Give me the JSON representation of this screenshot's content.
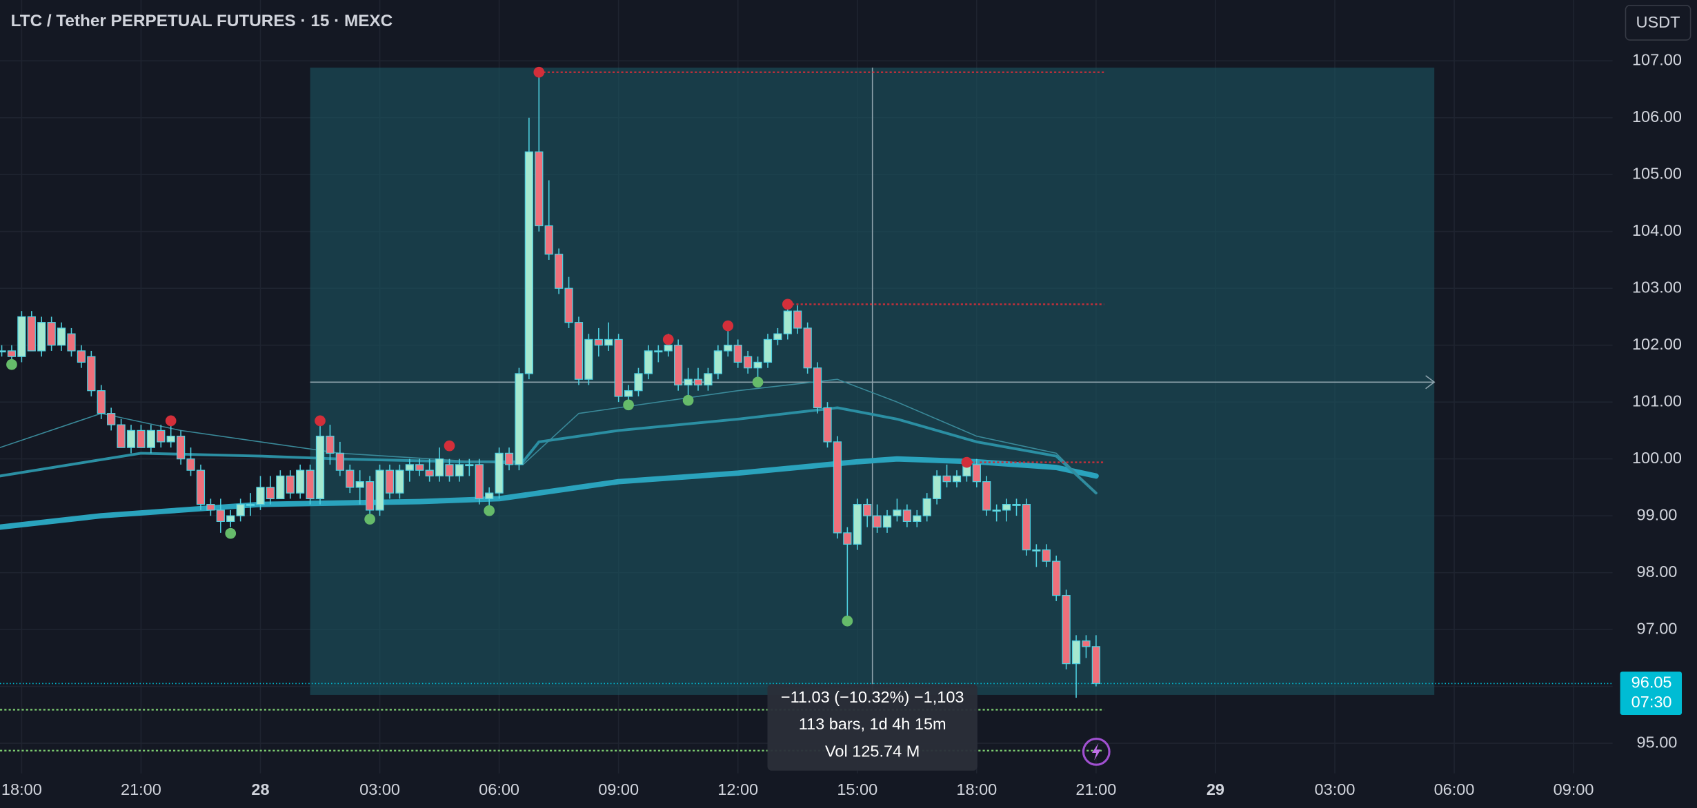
{
  "chart_data": {
    "type": "candlestick",
    "title": "LTC / Tether PERPETUAL FUTURES · 15 · MEXC",
    "currency": "USDT",
    "grid": true,
    "xlim": [
      17.456,
      57.98
    ],
    "ylim": [
      94.47,
      108.07
    ],
    "yticks": [
      {
        "value": 95,
        "label": "95.00"
      },
      {
        "value": 96,
        "label": "96.00"
      },
      {
        "value": 97,
        "label": "97.00"
      },
      {
        "value": 98,
        "label": "98.00"
      },
      {
        "value": 99,
        "label": "99.00"
      },
      {
        "value": 100,
        "label": "100.00"
      },
      {
        "value": 101,
        "label": "101.00"
      },
      {
        "value": 102,
        "label": "102.00"
      },
      {
        "value": 103,
        "label": "103.00"
      },
      {
        "value": 104,
        "label": "104.00"
      },
      {
        "value": 105,
        "label": "105.00"
      },
      {
        "value": 106,
        "label": "106.00"
      },
      {
        "value": 107,
        "label": "107.00"
      }
    ],
    "xticks": [
      {
        "value": 18,
        "label": "18:00"
      },
      {
        "value": 21,
        "label": "21:00"
      },
      {
        "value": 24,
        "label": "28"
      },
      {
        "value": 27,
        "label": "03:00"
      },
      {
        "value": 30,
        "label": "06:00"
      },
      {
        "value": 33,
        "label": "09:00"
      },
      {
        "value": 36,
        "label": "12:00"
      },
      {
        "value": 39,
        "label": "15:00"
      },
      {
        "value": 42,
        "label": "18:00"
      },
      {
        "value": 45,
        "label": "21:00"
      },
      {
        "value": 48,
        "label": "29"
      },
      {
        "value": 51,
        "label": "03:00"
      },
      {
        "value": 54,
        "label": "06:00"
      },
      {
        "value": 57,
        "label": "09:00"
      }
    ],
    "colors": {
      "up": "#a5e8cf",
      "down": "#ef6f7a",
      "wick": "#4fd0e0"
    },
    "x": [
      17.5,
      17.75,
      18,
      18.25,
      18.5,
      18.75,
      19,
      19.25,
      19.5,
      19.75,
      20,
      20.25,
      20.5,
      20.75,
      21,
      21.25,
      21.5,
      21.75,
      22,
      22.25,
      22.5,
      22.75,
      23,
      23.25,
      23.5,
      23.75,
      24,
      24.25,
      24.5,
      24.75,
      25,
      25.25,
      25.5,
      25.75,
      26,
      26.25,
      26.5,
      26.75,
      27,
      27.25,
      27.5,
      27.75,
      28,
      28.25,
      28.5,
      28.75,
      29,
      29.25,
      29.5,
      29.75,
      30,
      30.25,
      30.5,
      30.75,
      31,
      31.25,
      31.5,
      31.75,
      32,
      32.25,
      32.5,
      32.75,
      33,
      33.25,
      33.5,
      33.75,
      34,
      34.25,
      34.5,
      34.75,
      35,
      35.25,
      35.5,
      35.75,
      36,
      36.25,
      36.5,
      36.75,
      37,
      37.25,
      37.5,
      37.75,
      38,
      38.25,
      38.5,
      38.75,
      39,
      39.25,
      39.5,
      39.75,
      40,
      40.25,
      40.5,
      40.75,
      41,
      41.25,
      41.5,
      41.75,
      42,
      42.25,
      42.5,
      42.75,
      43,
      43.25,
      43.5,
      43.75,
      44,
      44.25,
      44.5,
      44.75,
      45
    ],
    "ohlc": [
      [
        101.9,
        102.0,
        101.8,
        101.9
      ],
      [
        101.9,
        102.0,
        101.7,
        101.8
      ],
      [
        101.8,
        102.6,
        101.7,
        102.5
      ],
      [
        102.5,
        102.6,
        101.9,
        101.9
      ],
      [
        101.9,
        102.5,
        101.8,
        102.4
      ],
      [
        102.4,
        102.5,
        101.9,
        102.0
      ],
      [
        102.0,
        102.4,
        101.9,
        102.3
      ],
      [
        102.2,
        102.3,
        101.8,
        101.9
      ],
      [
        101.9,
        102.0,
        101.6,
        101.7
      ],
      [
        101.8,
        101.9,
        101.1,
        101.2
      ],
      [
        101.2,
        101.3,
        100.7,
        100.8
      ],
      [
        100.8,
        100.9,
        100.5,
        100.6
      ],
      [
        100.6,
        100.7,
        100.2,
        100.2
      ],
      [
        100.2,
        100.6,
        100.1,
        100.5
      ],
      [
        100.5,
        100.6,
        100.2,
        100.2
      ],
      [
        100.2,
        100.6,
        100.1,
        100.5
      ],
      [
        100.5,
        100.6,
        100.2,
        100.3
      ],
      [
        100.3,
        100.7,
        100.2,
        100.4
      ],
      [
        100.4,
        100.5,
        99.9,
        100.0
      ],
      [
        100.0,
        100.2,
        99.7,
        99.8
      ],
      [
        99.8,
        99.9,
        99.1,
        99.2
      ],
      [
        99.2,
        99.3,
        99.0,
        99.1
      ],
      [
        99.1,
        99.3,
        98.7,
        98.9
      ],
      [
        98.9,
        99.1,
        98.8,
        99.0
      ],
      [
        99.0,
        99.3,
        98.9,
        99.2
      ],
      [
        99.2,
        99.4,
        99.0,
        99.2
      ],
      [
        99.2,
        99.7,
        99.1,
        99.5
      ],
      [
        99.5,
        99.7,
        99.2,
        99.3
      ],
      [
        99.3,
        99.8,
        99.3,
        99.7
      ],
      [
        99.7,
        99.8,
        99.3,
        99.4
      ],
      [
        99.4,
        99.9,
        99.3,
        99.8
      ],
      [
        99.8,
        99.9,
        99.2,
        99.3
      ],
      [
        99.3,
        100.6,
        99.2,
        100.4
      ],
      [
        100.4,
        100.6,
        99.9,
        100.1
      ],
      [
        100.1,
        100.3,
        99.7,
        99.8
      ],
      [
        99.8,
        99.9,
        99.4,
        99.5
      ],
      [
        99.5,
        99.8,
        99.2,
        99.6
      ],
      [
        99.6,
        99.7,
        98.9,
        99.1
      ],
      [
        99.1,
        99.9,
        99.0,
        99.8
      ],
      [
        99.8,
        99.9,
        99.3,
        99.4
      ],
      [
        99.4,
        99.9,
        99.3,
        99.8
      ],
      [
        99.8,
        100.0,
        99.6,
        99.9
      ],
      [
        99.9,
        100.0,
        99.7,
        99.8
      ],
      [
        99.8,
        100.0,
        99.6,
        99.7
      ],
      [
        99.7,
        100.2,
        99.6,
        100.0
      ],
      [
        99.9,
        100.0,
        99.6,
        99.7
      ],
      [
        99.7,
        100.0,
        99.6,
        99.9
      ],
      [
        99.9,
        100.0,
        99.7,
        99.9
      ],
      [
        99.9,
        100.0,
        99.2,
        99.3
      ],
      [
        99.3,
        99.5,
        99.1,
        99.4
      ],
      [
        99.4,
        100.2,
        99.3,
        100.1
      ],
      [
        100.1,
        100.2,
        99.8,
        99.9
      ],
      [
        99.9,
        101.6,
        99.8,
        101.5
      ],
      [
        101.5,
        106.0,
        101.4,
        105.4
      ],
      [
        105.4,
        106.8,
        104.0,
        104.1
      ],
      [
        104.1,
        104.9,
        103.5,
        103.6
      ],
      [
        103.6,
        103.7,
        102.9,
        103.0
      ],
      [
        103.0,
        103.2,
        102.3,
        102.4
      ],
      [
        102.4,
        102.5,
        101.3,
        101.4
      ],
      [
        101.4,
        102.2,
        101.3,
        102.1
      ],
      [
        102.1,
        102.3,
        101.8,
        102.0
      ],
      [
        102.0,
        102.4,
        101.9,
        102.1
      ],
      [
        102.1,
        102.2,
        101.0,
        101.1
      ],
      [
        101.1,
        101.3,
        100.9,
        101.2
      ],
      [
        101.2,
        101.6,
        101.1,
        101.5
      ],
      [
        101.5,
        102.0,
        101.4,
        101.9
      ],
      [
        101.9,
        102.0,
        101.7,
        101.9
      ],
      [
        101.9,
        102.2,
        101.8,
        102.0
      ],
      [
        102.0,
        102.1,
        101.2,
        101.3
      ],
      [
        101.3,
        101.6,
        101.0,
        101.4
      ],
      [
        101.4,
        101.6,
        101.2,
        101.3
      ],
      [
        101.3,
        101.6,
        101.2,
        101.5
      ],
      [
        101.5,
        102.0,
        101.4,
        101.9
      ],
      [
        101.9,
        102.3,
        101.8,
        102.0
      ],
      [
        102.0,
        102.1,
        101.6,
        101.7
      ],
      [
        101.8,
        101.9,
        101.5,
        101.6
      ],
      [
        101.6,
        101.8,
        101.3,
        101.7
      ],
      [
        101.7,
        102.2,
        101.6,
        102.1
      ],
      [
        102.1,
        102.3,
        102.0,
        102.2
      ],
      [
        102.2,
        102.7,
        102.1,
        102.6
      ],
      [
        102.6,
        102.7,
        102.2,
        102.3
      ],
      [
        102.3,
        102.4,
        101.5,
        101.6
      ],
      [
        101.6,
        101.7,
        100.8,
        100.9
      ],
      [
        100.9,
        101.0,
        100.2,
        100.3
      ],
      [
        100.3,
        100.4,
        98.6,
        98.7
      ],
      [
        98.7,
        98.8,
        97.2,
        98.5
      ],
      [
        98.5,
        99.3,
        98.4,
        99.2
      ],
      [
        99.2,
        99.3,
        98.8,
        99.0
      ],
      [
        99.0,
        99.2,
        98.7,
        98.8
      ],
      [
        98.8,
        99.1,
        98.7,
        99.0
      ],
      [
        99.0,
        99.3,
        98.9,
        99.1
      ],
      [
        99.1,
        99.2,
        98.8,
        98.9
      ],
      [
        98.9,
        99.1,
        98.8,
        99.0
      ],
      [
        99.0,
        99.4,
        98.9,
        99.3
      ],
      [
        99.3,
        99.8,
        99.2,
        99.7
      ],
      [
        99.7,
        99.9,
        99.5,
        99.6
      ],
      [
        99.6,
        99.8,
        99.5,
        99.7
      ],
      [
        99.7,
        100.0,
        99.6,
        99.9
      ],
      [
        99.9,
        100.0,
        99.5,
        99.6
      ],
      [
        99.6,
        99.7,
        99.0,
        99.1
      ],
      [
        99.1,
        99.2,
        98.9,
        99.1
      ],
      [
        99.1,
        99.3,
        98.9,
        99.2
      ],
      [
        99.2,
        99.3,
        99.0,
        99.2
      ],
      [
        99.2,
        99.3,
        98.3,
        98.4
      ],
      [
        98.4,
        98.5,
        98.1,
        98.4
      ],
      [
        98.4,
        98.5,
        98.1,
        98.2
      ],
      [
        98.2,
        98.3,
        97.5,
        97.6
      ],
      [
        97.6,
        97.7,
        96.3,
        96.4
      ],
      [
        96.4,
        96.9,
        95.8,
        96.8
      ],
      [
        96.8,
        96.9,
        96.5,
        96.7
      ],
      [
        96.7,
        96.9,
        96.0,
        96.05
      ]
    ],
    "moving_averages": [
      {
        "color": "#2aa3bd",
        "width": 5,
        "x": [
          17.456,
          20,
          22,
          24,
          28,
          30,
          31,
          33,
          36,
          39,
          40,
          42,
          44,
          45
        ],
        "values": [
          98.8,
          99.0,
          99.1,
          99.2,
          99.25,
          99.3,
          99.4,
          99.6,
          99.75,
          99.95,
          100.0,
          99.95,
          99.85,
          99.7
        ]
      },
      {
        "color": "#2b8fa3",
        "width": 2.5,
        "x": [
          17.456,
          21,
          24,
          26,
          29,
          30.6,
          31,
          33,
          36,
          38.5,
          40,
          42,
          44,
          45
        ],
        "values": [
          99.7,
          100.1,
          100.05,
          100.0,
          99.95,
          99.95,
          100.3,
          100.5,
          100.7,
          100.9,
          100.7,
          100.3,
          100.05,
          99.4
        ]
      },
      {
        "color": "#3a8a9a",
        "width": 1,
        "x": [
          17.456,
          20,
          22,
          26,
          30.6,
          32,
          36,
          38.5,
          40,
          42,
          44,
          45
        ],
        "values": [
          100.2,
          100.8,
          100.5,
          100.1,
          99.9,
          100.8,
          101.2,
          101.4,
          101.0,
          100.4,
          100.1,
          99.4
        ]
      }
    ],
    "pivot_highs": {
      "color": "#d32f3a",
      "x": [
        21.75,
        25.5,
        28.75,
        31,
        34.25,
        35.75,
        37.25,
        41.75
      ],
      "values": [
        100.67,
        100.67,
        100.23,
        106.8,
        102.1,
        102.34,
        102.72,
        99.94
      ]
    },
    "pivot_lows": {
      "color": "#66bb6a",
      "x": [
        17.75,
        23.25,
        26.75,
        29.75,
        33.25,
        34.75,
        36.5,
        38.75
      ],
      "values": [
        101.66,
        98.69,
        98.94,
        99.09,
        100.95,
        101.03,
        101.35,
        97.15
      ]
    },
    "levels": [
      {
        "color": "#c62f3a",
        "x": [
          31,
          45.2
        ],
        "value": 106.8
      },
      {
        "color": "#c62f3a",
        "x": [
          37.25,
          45.2
        ],
        "value": 102.72
      },
      {
        "color": "#c62f3a",
        "x": [
          41.75,
          45.2
        ],
        "value": 99.94
      },
      {
        "color": "#7bc96f",
        "x": [
          17.456,
          45.2
        ],
        "value": 95.59
      },
      {
        "color": "#7bc96f",
        "x": [
          17.456,
          45.2
        ],
        "value": 94.87
      }
    ],
    "measure": {
      "color": "#1a5560",
      "x": [
        25.25,
        53.5
      ],
      "y": [
        95.85,
        106.88
      ],
      "arrow_x": 39.38,
      "arrow_y": 101.35,
      "lines": [
        "−11.03 (−10.32%) −1,103",
        "113 bars, 1d 4h 15m",
        "Vol 125.74 M"
      ]
    },
    "last_price": {
      "value": 96.05,
      "countdown": "07:30",
      "color": "#00bcd4"
    }
  }
}
